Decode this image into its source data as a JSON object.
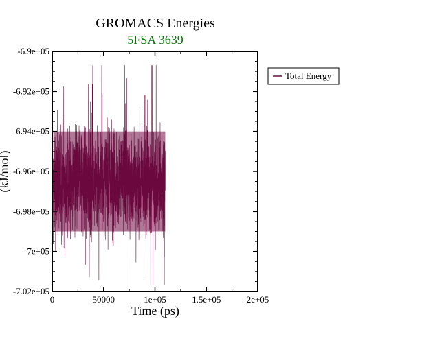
{
  "chart_data": {
    "type": "line",
    "title": "GROMACS Energies",
    "subtitle": "5FSA 3639",
    "xlabel": "Time (ps)",
    "ylabel": "(kJ/mol)",
    "xlim": [
      0,
      200000
    ],
    "ylim": [
      -702000,
      -690000
    ],
    "x_ticks": [
      0,
      50000,
      100000,
      150000,
      200000
    ],
    "x_tick_labels": [
      "0",
      "50000",
      "1e+05",
      "1.5e+05",
      "2e+05"
    ],
    "y_ticks": [
      -702000,
      -700000,
      -698000,
      -696000,
      -694000,
      -692000,
      -690000
    ],
    "y_tick_labels": [
      "-7.02e+05",
      "-7e+05",
      "-6.98e+05",
      "-6.96e+05",
      "-6.94e+05",
      "-6.92e+05",
      "-6.9e+05"
    ],
    "grid": false,
    "legend_position": "right-outside-top",
    "series": [
      {
        "name": "Total Energy",
        "color": "#6b0a3f",
        "x_range": [
          0,
          110000
        ],
        "band_core": [
          -699000,
          -694000
        ],
        "band_extremes": [
          -701700,
          -690700
        ],
        "initial_value": -692000
      }
    ]
  }
}
